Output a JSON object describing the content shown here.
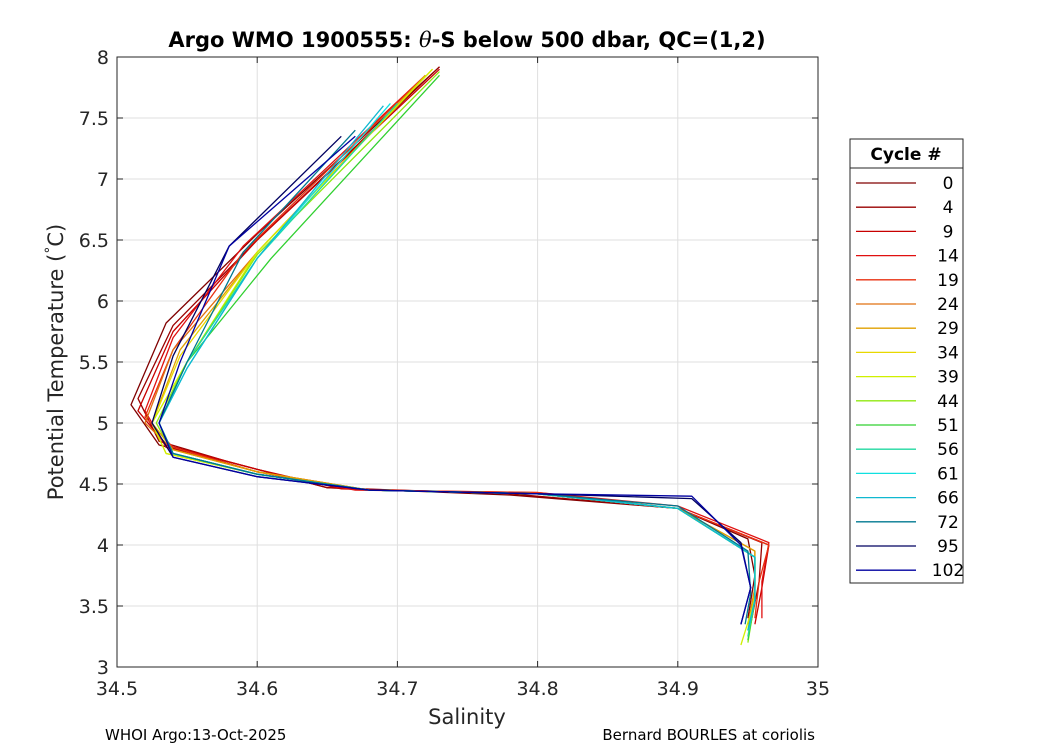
{
  "chart_data": {
    "type": "line",
    "title_prefix": "Argo WMO 1900555: ",
    "title_theta": "θ",
    "title_suffix": "-S below 500 dbar,  QC=(1,2)",
    "xlabel": "Salinity",
    "ylabel_main": "Potential Temperature (",
    "ylabel_deg": "°",
    "ylabel_end": "C)",
    "xlim": [
      34.5,
      35
    ],
    "ylim": [
      3,
      8
    ],
    "xticks": [
      "34.5",
      "34.6",
      "34.7",
      "34.8",
      "34.9",
      "35"
    ],
    "yticks": [
      "3",
      "3.5",
      "4",
      "4.5",
      "5",
      "5.5",
      "6",
      "6.5",
      "7",
      "7.5",
      "8"
    ],
    "grid": true,
    "legend_position": "right",
    "legend_title": "Cycle #",
    "series": [
      {
        "name": "0",
        "color": "#800000",
        "points": [
          [
            34.73,
            7.92
          ],
          [
            34.6,
            6.55
          ],
          [
            34.535,
            5.82
          ],
          [
            34.51,
            5.15
          ],
          [
            34.53,
            4.82
          ],
          [
            34.58,
            4.68
          ],
          [
            34.65,
            4.47
          ],
          [
            34.78,
            4.41
          ],
          [
            34.9,
            4.3
          ],
          [
            34.95,
            4.05
          ],
          [
            34.955,
            3.75
          ],
          [
            34.95,
            3.4
          ]
        ]
      },
      {
        "name": "4",
        "color": "#9a0000",
        "points": [
          [
            34.73,
            7.92
          ],
          [
            34.6,
            6.5
          ],
          [
            34.54,
            5.8
          ],
          [
            34.515,
            5.2
          ],
          [
            34.53,
            4.85
          ],
          [
            34.58,
            4.68
          ],
          [
            34.65,
            4.47
          ],
          [
            34.78,
            4.42
          ],
          [
            34.9,
            4.3
          ],
          [
            34.96,
            4.02
          ],
          [
            34.958,
            3.7
          ],
          [
            34.952,
            3.35
          ]
        ]
      },
      {
        "name": "9",
        "color": "#c80000",
        "points": [
          [
            34.73,
            7.9
          ],
          [
            34.6,
            6.5
          ],
          [
            34.54,
            5.75
          ],
          [
            34.515,
            5.1
          ],
          [
            34.535,
            4.82
          ],
          [
            34.6,
            4.62
          ],
          [
            34.66,
            4.46
          ],
          [
            34.8,
            4.42
          ],
          [
            34.9,
            4.3
          ],
          [
            34.965,
            4.0
          ],
          [
            34.96,
            3.65
          ],
          [
            34.955,
            3.35
          ]
        ]
      },
      {
        "name": "14",
        "color": "#e01010",
        "points": [
          [
            34.72,
            7.85
          ],
          [
            34.59,
            6.45
          ],
          [
            34.54,
            5.7
          ],
          [
            34.52,
            5.1
          ],
          [
            34.535,
            4.8
          ],
          [
            34.6,
            4.6
          ],
          [
            34.67,
            4.45
          ],
          [
            34.8,
            4.43
          ],
          [
            34.9,
            4.32
          ],
          [
            34.965,
            4.02
          ],
          [
            34.96,
            3.7
          ],
          [
            34.96,
            3.4
          ]
        ]
      },
      {
        "name": "19",
        "color": "#e83010",
        "points": [
          [
            34.72,
            7.85
          ],
          [
            34.59,
            6.4
          ],
          [
            34.54,
            5.6
          ],
          [
            34.52,
            5.05
          ],
          [
            34.54,
            4.8
          ],
          [
            34.6,
            4.6
          ],
          [
            34.68,
            4.45
          ],
          [
            34.8,
            4.43
          ],
          [
            34.9,
            4.3
          ],
          [
            34.965,
            4.0
          ],
          [
            34.958,
            3.7
          ],
          [
            34.955,
            3.4
          ]
        ]
      },
      {
        "name": "24",
        "color": "#e07010",
        "points": [
          [
            34.72,
            7.85
          ],
          [
            34.6,
            6.4
          ],
          [
            34.54,
            5.6
          ],
          [
            34.52,
            5.0
          ],
          [
            34.54,
            4.78
          ],
          [
            34.6,
            4.6
          ],
          [
            34.68,
            4.45
          ],
          [
            34.8,
            4.42
          ],
          [
            34.9,
            4.3
          ],
          [
            34.955,
            3.95
          ],
          [
            34.955,
            3.65
          ],
          [
            34.95,
            3.35
          ]
        ]
      },
      {
        "name": "29",
        "color": "#e0a000",
        "points": [
          [
            34.72,
            7.85
          ],
          [
            34.6,
            6.4
          ],
          [
            34.545,
            5.6
          ],
          [
            34.525,
            5.0
          ],
          [
            34.54,
            4.78
          ],
          [
            34.6,
            4.6
          ],
          [
            34.68,
            4.45
          ],
          [
            34.8,
            4.42
          ],
          [
            34.9,
            4.3
          ],
          [
            34.955,
            3.95
          ],
          [
            34.955,
            3.65
          ],
          [
            34.95,
            3.3
          ]
        ]
      },
      {
        "name": "34",
        "color": "#e8d800",
        "points": [
          [
            34.725,
            7.9
          ],
          [
            34.6,
            6.4
          ],
          [
            34.545,
            5.55
          ],
          [
            34.525,
            5.0
          ],
          [
            34.535,
            4.75
          ],
          [
            34.6,
            4.58
          ],
          [
            34.68,
            4.45
          ],
          [
            34.8,
            4.42
          ],
          [
            34.9,
            4.3
          ],
          [
            34.955,
            3.9
          ],
          [
            34.955,
            3.6
          ],
          [
            34.95,
            3.25
          ]
        ]
      },
      {
        "name": "39",
        "color": "#d0f000",
        "points": [
          [
            34.725,
            7.9
          ],
          [
            34.6,
            6.4
          ],
          [
            34.55,
            5.5
          ],
          [
            34.525,
            5.0
          ],
          [
            34.535,
            4.75
          ],
          [
            34.6,
            4.58
          ],
          [
            34.68,
            4.45
          ],
          [
            34.8,
            4.42
          ],
          [
            34.9,
            4.3
          ],
          [
            34.955,
            3.9
          ],
          [
            34.955,
            3.55
          ],
          [
            34.945,
            3.18
          ]
        ]
      },
      {
        "name": "44",
        "color": "#90e810",
        "points": [
          [
            34.73,
            7.88
          ],
          [
            34.6,
            6.38
          ],
          [
            34.55,
            5.5
          ],
          [
            34.528,
            5.0
          ],
          [
            34.54,
            4.75
          ],
          [
            34.6,
            4.58
          ],
          [
            34.68,
            4.45
          ],
          [
            34.8,
            4.42
          ],
          [
            34.9,
            4.3
          ],
          [
            34.955,
            3.9
          ],
          [
            34.955,
            3.55
          ],
          [
            34.95,
            3.2
          ]
        ]
      },
      {
        "name": "51",
        "color": "#30d030",
        "points": [
          [
            34.73,
            7.85
          ],
          [
            34.61,
            6.35
          ],
          [
            34.55,
            5.5
          ],
          [
            34.53,
            5.0
          ],
          [
            34.54,
            4.75
          ],
          [
            34.6,
            4.58
          ],
          [
            34.68,
            4.45
          ],
          [
            34.8,
            4.42
          ],
          [
            34.9,
            4.3
          ],
          [
            34.955,
            3.9
          ],
          [
            34.955,
            3.55
          ],
          [
            34.95,
            3.22
          ]
        ]
      },
      {
        "name": "56",
        "color": "#20d8a0",
        "points": [
          [
            34.7,
            7.62
          ],
          [
            34.6,
            6.35
          ],
          [
            34.55,
            5.5
          ],
          [
            34.53,
            5.0
          ],
          [
            34.54,
            4.75
          ],
          [
            34.6,
            4.58
          ],
          [
            34.68,
            4.45
          ],
          [
            34.8,
            4.42
          ],
          [
            34.9,
            4.3
          ],
          [
            34.955,
            3.9
          ],
          [
            34.955,
            3.55
          ],
          [
            34.95,
            3.25
          ]
        ]
      },
      {
        "name": "61",
        "color": "#10e0e0",
        "points": [
          [
            34.695,
            7.62
          ],
          [
            34.6,
            6.35
          ],
          [
            34.55,
            5.45
          ],
          [
            34.53,
            5.0
          ],
          [
            34.54,
            4.75
          ],
          [
            34.6,
            4.58
          ],
          [
            34.68,
            4.45
          ],
          [
            34.8,
            4.42
          ],
          [
            34.9,
            4.3
          ],
          [
            34.955,
            3.9
          ],
          [
            34.955,
            3.55
          ],
          [
            34.95,
            3.3
          ]
        ]
      },
      {
        "name": "66",
        "color": "#10b8d0",
        "points": [
          [
            34.69,
            7.6
          ],
          [
            34.6,
            6.35
          ],
          [
            34.55,
            5.45
          ],
          [
            34.53,
            5.0
          ],
          [
            34.54,
            4.75
          ],
          [
            34.6,
            4.58
          ],
          [
            34.68,
            4.45
          ],
          [
            34.8,
            4.42
          ],
          [
            34.9,
            4.3
          ],
          [
            34.955,
            3.9
          ],
          [
            34.955,
            3.55
          ],
          [
            34.95,
            3.3
          ]
        ]
      },
      {
        "name": "72",
        "color": "#007890",
        "points": [
          [
            34.67,
            7.4
          ],
          [
            34.59,
            6.4
          ],
          [
            34.55,
            5.5
          ],
          [
            34.53,
            5.0
          ],
          [
            34.54,
            4.75
          ],
          [
            34.6,
            4.58
          ],
          [
            34.68,
            4.45
          ],
          [
            34.8,
            4.42
          ],
          [
            34.9,
            4.32
          ],
          [
            34.95,
            3.95
          ],
          [
            34.952,
            3.6
          ],
          [
            34.948,
            3.35
          ]
        ]
      },
      {
        "name": "95",
        "color": "#000060",
        "points": [
          [
            34.66,
            7.35
          ],
          [
            34.58,
            6.45
          ],
          [
            34.54,
            5.55
          ],
          [
            34.525,
            5.0
          ],
          [
            34.54,
            4.72
          ],
          [
            34.6,
            4.56
          ],
          [
            34.68,
            4.45
          ],
          [
            34.8,
            4.42
          ],
          [
            34.91,
            4.38
          ],
          [
            34.945,
            4.02
          ],
          [
            34.952,
            3.65
          ],
          [
            34.945,
            3.35
          ]
        ]
      },
      {
        "name": "102",
        "color": "#0000a0",
        "points": [
          [
            34.67,
            7.35
          ],
          [
            34.58,
            6.45
          ],
          [
            34.545,
            5.5
          ],
          [
            34.53,
            5.0
          ],
          [
            34.54,
            4.72
          ],
          [
            34.6,
            4.56
          ],
          [
            34.68,
            4.45
          ],
          [
            34.8,
            4.42
          ],
          [
            34.91,
            4.4
          ],
          [
            34.945,
            4.0
          ],
          [
            34.952,
            3.65
          ],
          [
            34.945,
            3.35
          ]
        ]
      }
    ]
  },
  "footer": {
    "left": "WHOI Argo:13-Oct-2025",
    "right": "Bernard BOURLES at coriolis"
  }
}
